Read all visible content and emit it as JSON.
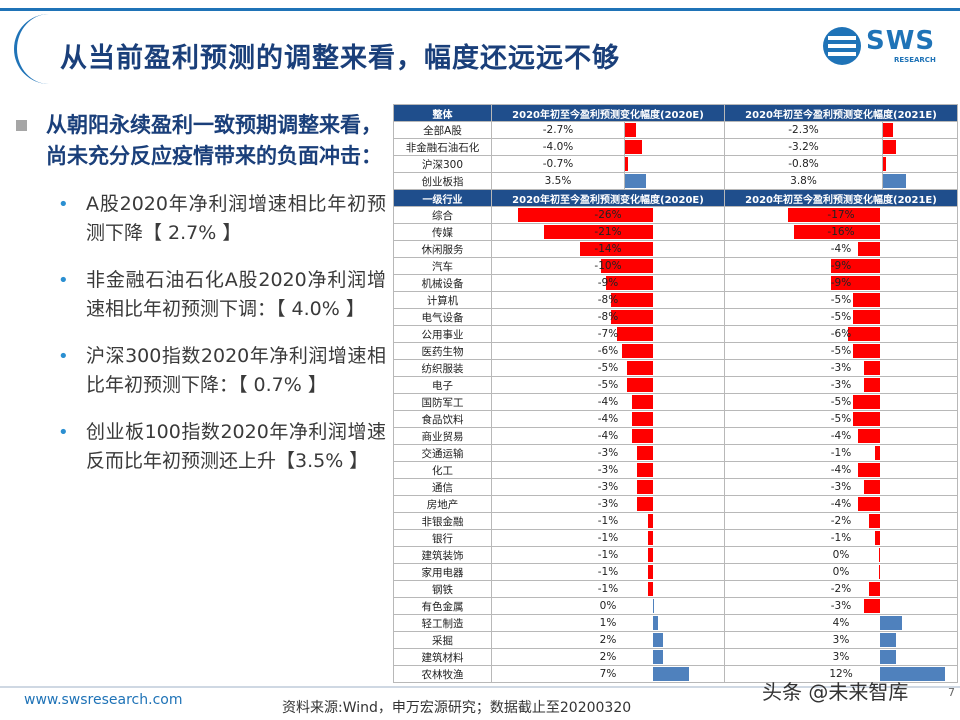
{
  "title": "从当前盈利预测的调整来看，幅度还远远不够",
  "logo": {
    "text": "SWS",
    "sub": "RESEARCH"
  },
  "main_point": "从朝阳永续盈利一致预期调整来看，尚未充分反应疫情带来的负面冲击：",
  "bullets": [
    "A股2020年净利润增速相比年初预测下降【 2.7% 】",
    "非金融石油石化A股2020净利润增速相比年初预测下调：【 4.0% 】",
    "沪深300指数2020年净利润增速相比年初预测下降：【 0.7% 】",
    "创业板100指数2020年净利润增速反而比年初预测还上升【3.5% 】"
  ],
  "table": {
    "overall_header": [
      "整体",
      "2020年初至今盈利预测变化幅度(2020E)",
      "2020年初至今盈利预测变化幅度(2021E)"
    ],
    "overall_rows": [
      {
        "name": "全部A股",
        "v2020": "-2.7%",
        "n2020": -2.7,
        "v2021": "-2.3%",
        "n2021": -2.3
      },
      {
        "name": "非金融石油石化",
        "v2020": "-4.0%",
        "n2020": -4.0,
        "v2021": "-3.2%",
        "n2021": -3.2
      },
      {
        "name": "沪深300",
        "v2020": "-0.7%",
        "n2020": -0.7,
        "v2021": "-0.8%",
        "n2021": -0.8
      },
      {
        "name": "创业板指",
        "v2020": "3.5%",
        "n2020": 3.5,
        "v2021": "3.8%",
        "n2021": 3.8
      }
    ],
    "industry_header": [
      "一级行业",
      "2020年初至今盈利预测变化幅度(2020E)",
      "2020年初至今盈利预测变化幅度(2021E)"
    ],
    "industry_rows": [
      {
        "name": "综合",
        "v2020": "-26%",
        "n2020": -26,
        "v2021": "-17%",
        "n2021": -17
      },
      {
        "name": "传媒",
        "v2020": "-21%",
        "n2020": -21,
        "v2021": "-16%",
        "n2021": -16
      },
      {
        "name": "休闲服务",
        "v2020": "-14%",
        "n2020": -14,
        "v2021": "-4%",
        "n2021": -4
      },
      {
        "name": "汽车",
        "v2020": "-10%",
        "n2020": -10,
        "v2021": "-9%",
        "n2021": -9
      },
      {
        "name": "机械设备",
        "v2020": "-9%",
        "n2020": -9,
        "v2021": "-9%",
        "n2021": -9
      },
      {
        "name": "计算机",
        "v2020": "-8%",
        "n2020": -8,
        "v2021": "-5%",
        "n2021": -5
      },
      {
        "name": "电气设备",
        "v2020": "-8%",
        "n2020": -8,
        "v2021": "-5%",
        "n2021": -5
      },
      {
        "name": "公用事业",
        "v2020": "-7%",
        "n2020": -7,
        "v2021": "-6%",
        "n2021": -6
      },
      {
        "name": "医药生物",
        "v2020": "-6%",
        "n2020": -6,
        "v2021": "-5%",
        "n2021": -5
      },
      {
        "name": "纺织服装",
        "v2020": "-5%",
        "n2020": -5,
        "v2021": "-3%",
        "n2021": -3
      },
      {
        "name": "电子",
        "v2020": "-5%",
        "n2020": -5,
        "v2021": "-3%",
        "n2021": -3
      },
      {
        "name": "国防军工",
        "v2020": "-4%",
        "n2020": -4,
        "v2021": "-5%",
        "n2021": -5
      },
      {
        "name": "食品饮料",
        "v2020": "-4%",
        "n2020": -4,
        "v2021": "-5%",
        "n2021": -5
      },
      {
        "name": "商业贸易",
        "v2020": "-4%",
        "n2020": -4,
        "v2021": "-4%",
        "n2021": -4
      },
      {
        "name": "交通运输",
        "v2020": "-3%",
        "n2020": -3,
        "v2021": "-1%",
        "n2021": -1
      },
      {
        "name": "化工",
        "v2020": "-3%",
        "n2020": -3,
        "v2021": "-4%",
        "n2021": -4
      },
      {
        "name": "通信",
        "v2020": "-3%",
        "n2020": -3,
        "v2021": "-3%",
        "n2021": -3
      },
      {
        "name": "房地产",
        "v2020": "-3%",
        "n2020": -3,
        "v2021": "-4%",
        "n2021": -4
      },
      {
        "name": "非银金融",
        "v2020": "-1%",
        "n2020": -1,
        "v2021": "-2%",
        "n2021": -2
      },
      {
        "name": "银行",
        "v2020": "-1%",
        "n2020": -1,
        "v2021": "-1%",
        "n2021": -1
      },
      {
        "name": "建筑装饰",
        "v2020": "-1%",
        "n2020": -1,
        "v2021": "0%",
        "n2021": -0.2
      },
      {
        "name": "家用电器",
        "v2020": "-1%",
        "n2020": -1,
        "v2021": "0%",
        "n2021": -0.2
      },
      {
        "name": "钢铁",
        "v2020": "-1%",
        "n2020": -1,
        "v2021": "-2%",
        "n2021": -2
      },
      {
        "name": "有色金属",
        "v2020": "0%",
        "n2020": 0.2,
        "v2021": "-3%",
        "n2021": -3
      },
      {
        "name": "轻工制造",
        "v2020": "1%",
        "n2020": 1,
        "v2021": "4%",
        "n2021": 4
      },
      {
        "name": "采掘",
        "v2020": "2%",
        "n2020": 2,
        "v2021": "3%",
        "n2021": 3
      },
      {
        "name": "建筑材料",
        "v2020": "2%",
        "n2020": 2,
        "v2021": "3%",
        "n2021": 3
      },
      {
        "name": "农林牧渔",
        "v2020": "7%",
        "n2020": 7,
        "v2021": "12%",
        "n2021": 12
      }
    ]
  },
  "footer": {
    "url": "www.swsresearch.com",
    "source": "资料来源:Wind，申万宏源研究；数据截止至20200320",
    "watermark": "头条 @未来智库",
    "page": "7"
  },
  "colors": {
    "negative": "#ff0000",
    "positive": "#4f81bd",
    "header": "#1f4e8c",
    "title": "#1a3f7a"
  }
}
